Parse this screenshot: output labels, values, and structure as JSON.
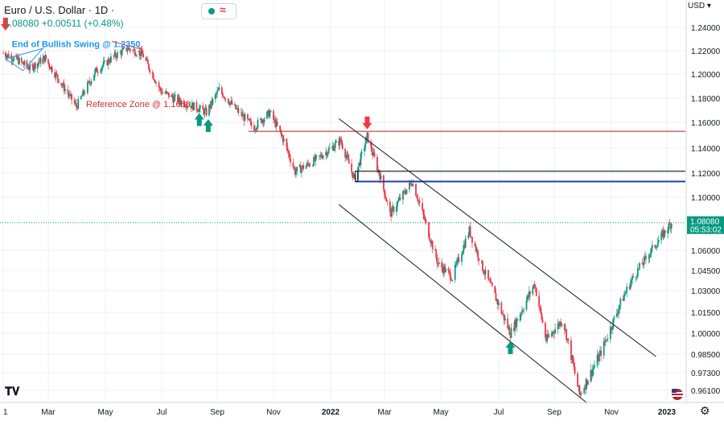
{
  "header": {
    "title": "Euro / U.S. Dollar · 1D ·",
    "quote": "1.08080 +0.00511 (+0.48%)"
  },
  "currency": "USD",
  "currency_menu_icon": "chevron-down-icon",
  "colors": {
    "up": "#089981",
    "down": "#f23645",
    "grid": "#eef1f6",
    "reference_line": "#d32f2f",
    "blue_line": "#1e40af",
    "dark_line": "#131722",
    "annotation_blue": "#2196f3",
    "last_price_line": "#089981"
  },
  "icons": {
    "status_dot": "green-dot-icon",
    "status_wave": "wave-icon",
    "settings": "gear-icon",
    "logo": "tradingview-logo",
    "flag": "us-flag-icon",
    "hide": "eye-off-icon"
  },
  "chart_data": {
    "type": "candlestick",
    "instrument": "EURUSD",
    "timeframe": "1D",
    "x_tick_labels": [
      "1",
      "Mar",
      "May",
      "Jul",
      "Sep",
      "Nov",
      "2022",
      "Mar",
      "May",
      "Jul",
      "Sep",
      "Nov",
      "2023"
    ],
    "x_tick_dates": [
      "2021-01-01",
      "2021-03-01",
      "2021-05-01",
      "2021-07-01",
      "2021-09-01",
      "2021-11-01",
      "2022-01-01",
      "2022-03-01",
      "2022-05-01",
      "2022-07-01",
      "2022-09-01",
      "2022-11-01",
      "2023-01-01"
    ],
    "y_tick_labels": [
      "1.24000",
      "1.22000",
      "1.20000",
      "1.18000",
      "1.16000",
      "1.14000",
      "1.12000",
      "1.10000",
      "1.08000",
      "1.06000",
      "1.04500",
      "1.03000",
      "1.01500",
      "1.00000",
      "0.98500",
      "0.97300",
      "0.96100"
    ],
    "y_ticks": [
      1.24,
      1.22,
      1.2,
      1.18,
      1.16,
      1.14,
      1.12,
      1.1,
      1.08,
      1.06,
      1.045,
      1.03,
      1.015,
      1.0,
      0.985,
      0.973,
      0.961
    ],
    "last_price": {
      "value": 1.0808,
      "label": "1.08080",
      "countdown": "05:53:02"
    },
    "price_path": [
      [
        "2021-01-01",
        1.218
      ],
      [
        "2021-01-20",
        1.212
      ],
      [
        "2021-02-05",
        1.205
      ],
      [
        "2021-02-25",
        1.214
      ],
      [
        "2021-03-15",
        1.192
      ],
      [
        "2021-03-31",
        1.173
      ],
      [
        "2021-04-20",
        1.202
      ],
      [
        "2021-05-10",
        1.215
      ],
      [
        "2021-05-25",
        1.222
      ],
      [
        "2021-06-10",
        1.217
      ],
      [
        "2021-06-30",
        1.186
      ],
      [
        "2021-07-20",
        1.178
      ],
      [
        "2021-08-10",
        1.172
      ],
      [
        "2021-08-20",
        1.168
      ],
      [
        "2021-09-03",
        1.187
      ],
      [
        "2021-09-20",
        1.172
      ],
      [
        "2021-10-10",
        1.156
      ],
      [
        "2021-10-28",
        1.168
      ],
      [
        "2021-11-12",
        1.146
      ],
      [
        "2021-11-24",
        1.121
      ],
      [
        "2021-12-15",
        1.13
      ],
      [
        "2022-01-12",
        1.146
      ],
      [
        "2022-01-27",
        1.115
      ],
      [
        "2022-02-10",
        1.149
      ],
      [
        "2022-02-24",
        1.118
      ],
      [
        "2022-03-07",
        1.087
      ],
      [
        "2022-03-31",
        1.113
      ],
      [
        "2022-04-28",
        1.05
      ],
      [
        "2022-05-13",
        1.04
      ],
      [
        "2022-05-31",
        1.075
      ],
      [
        "2022-06-15",
        1.045
      ],
      [
        "2022-07-14",
        1.0
      ],
      [
        "2022-08-10",
        1.035
      ],
      [
        "2022-08-23",
        0.995
      ],
      [
        "2022-09-10",
        1.01
      ],
      [
        "2022-09-28",
        0.958
      ],
      [
        "2022-10-20",
        0.985
      ],
      [
        "2022-11-10",
        1.02
      ],
      [
        "2022-11-25",
        1.04
      ],
      [
        "2022-12-15",
        1.06
      ],
      [
        "2023-01-06",
        1.0808
      ]
    ],
    "annotations": {
      "end_of_bullish_swing": {
        "label": "End of Bullish Swing @ 1.2350",
        "price": 1.235,
        "date": "2021-01-08"
      },
      "reference_zone": {
        "label": "Reference Zone @ 1.1688",
        "price": 1.1688,
        "start_date": "2021-10-01"
      },
      "horizontal_lines": [
        {
          "price": 1.153,
          "start_date": "2021-10-05",
          "color": "reference_line"
        },
        {
          "price": 1.1215,
          "start_date": "2022-01-28",
          "color": "dark_line"
        },
        {
          "price": 1.113,
          "start_date": "2022-01-28",
          "color": "blue_line"
        }
      ],
      "channel_lines": [
        {
          "from": [
            "2022-01-10",
            1.163
          ],
          "to": [
            "2022-12-20",
            0.9835
          ]
        },
        {
          "from": [
            "2022-01-10",
            1.0945
          ],
          "to": [
            "2022-10-06",
            0.9525
          ]
        }
      ],
      "up_arrows": [
        {
          "date": "2021-08-12",
          "price": 1.165
        },
        {
          "date": "2021-08-22",
          "price": 1.16
        },
        {
          "date": "2022-07-14",
          "price": 0.992
        }
      ],
      "down_arrows": [
        {
          "date": "2021-01-04",
          "price": 1.24
        },
        {
          "date": "2022-02-10",
          "price": 1.157
        }
      ],
      "triangles": [
        {
          "points": [
            [
              "2021-01-04",
              1.213
            ],
            [
              "2021-02-22",
              1.222
            ],
            [
              "2021-01-27",
              1.203
            ]
          ]
        }
      ],
      "pennant_arrows": [
        {
          "from": [
            "2021-05-08",
            1.228
          ],
          "to": [
            "2021-06-10",
            1.221
          ]
        }
      ]
    }
  }
}
